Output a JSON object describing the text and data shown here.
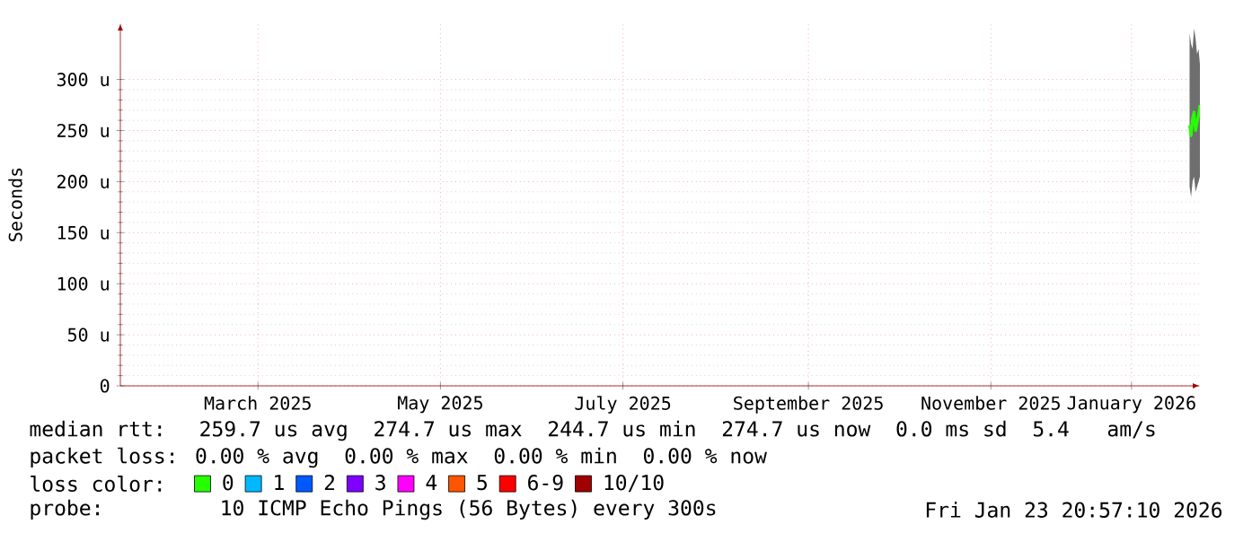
{
  "chart_data": {
    "type": "line",
    "ylabel": "Seconds",
    "x": [
      "2026-01-20T10:00",
      "2026-01-20T22:00",
      "2026-01-21T10:00",
      "2026-01-21T22:00",
      "2026-01-22T10:00",
      "2026-01-22T22:00",
      "2026-01-23T10:00",
      "2026-01-23T20:55"
    ],
    "xlim": [
      "2025-01-28",
      "2026-01-23T21:00"
    ],
    "xticks": [
      {
        "value": "2025-03-15",
        "label": "March 2025"
      },
      {
        "value": "2025-05-15",
        "label": "May 2025"
      },
      {
        "value": "2025-07-15",
        "label": "July 2025"
      },
      {
        "value": "2025-09-15",
        "label": "September 2025"
      },
      {
        "value": "2025-11-15",
        "label": "November 2025"
      },
      {
        "value": "2026-01-01",
        "label": "January 2026"
      }
    ],
    "ylim": [
      0,
      355
    ],
    "yticks": [
      0,
      {
        "value": 50,
        "label": "50 u"
      },
      {
        "value": 100,
        "label": "100 u"
      },
      {
        "value": 150,
        "label": "150 u"
      },
      {
        "value": 200,
        "label": "200 u"
      },
      {
        "value": 250,
        "label": "250 u"
      },
      {
        "value": 300,
        "label": "300 u"
      }
    ],
    "grid": true,
    "legend": "bottom",
    "legend_title": "loss color:",
    "series": [
      {
        "name": "0",
        "color": "#26ff00",
        "values": [
          255,
          245,
          262,
          268,
          250,
          258,
          265,
          275
        ],
        "lower": [
          195,
          185,
          200,
          205,
          190,
          195,
          200,
          205
        ],
        "upper": [
          345,
          335,
          330,
          350,
          340,
          325,
          330,
          315
        ]
      },
      {
        "name": "1",
        "color": "#00b8ff",
        "values": [
          null,
          null,
          null,
          null,
          null,
          null,
          null,
          null
        ]
      },
      {
        "name": "2",
        "color": "#0059ff",
        "values": [
          null,
          null,
          null,
          null,
          null,
          null,
          null,
          null
        ]
      },
      {
        "name": "3",
        "color": "#7e00ff",
        "values": [
          null,
          null,
          null,
          null,
          null,
          null,
          null,
          null
        ]
      },
      {
        "name": "4",
        "color": "#ff00ff",
        "values": [
          null,
          null,
          null,
          null,
          null,
          null,
          null,
          null
        ]
      },
      {
        "name": "5",
        "color": "#ff5500",
        "values": [
          null,
          null,
          null,
          null,
          null,
          null,
          null,
          null
        ]
      },
      {
        "name": "6-9",
        "color": "#ff0000",
        "values": [
          null,
          null,
          null,
          null,
          null,
          null,
          null,
          null
        ]
      },
      {
        "name": "10/10",
        "color": "#a10000",
        "values": [
          null,
          null,
          null,
          null,
          null,
          null,
          null,
          null
        ]
      }
    ],
    "annotations": [
      "median rtt:  259.7 us avg  274.7 us max  244.7 us min  274.7 us now  0.0 ms sd  5.4   am/s",
      "packet loss: 0.00 % avg  0.00 % max  0.00 % min  0.00 % now",
      "probe:       10 ICMP Echo Pings (56 Bytes) every 300s",
      "Fri Jan 23 20:57:10 2026"
    ]
  }
}
